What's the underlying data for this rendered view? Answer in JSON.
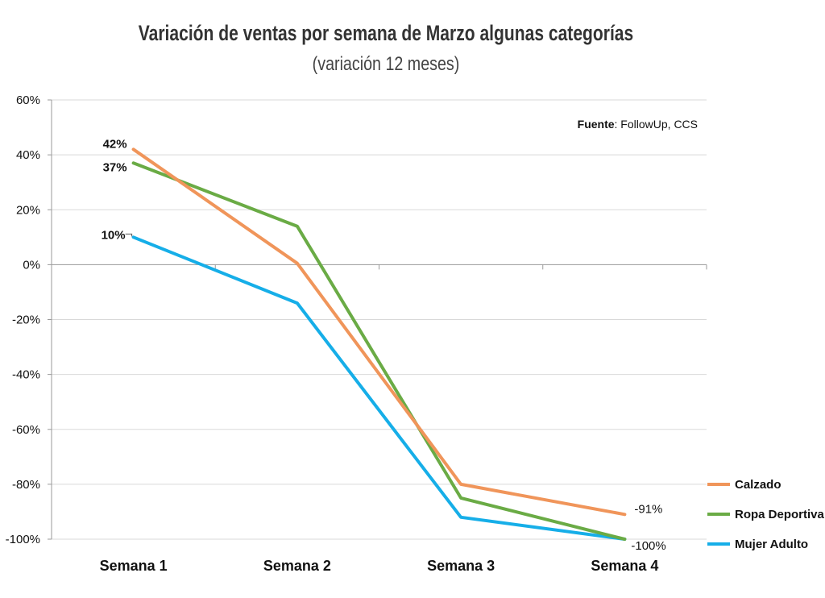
{
  "chart_data": {
    "type": "line",
    "title": "Variación de ventas por semana de Marzo algunas categorías",
    "subtitle": "(variación 12 meses)",
    "source_label": "Fuente",
    "source_text": ": FollowUp, CCS",
    "categories": [
      "Semana 1",
      "Semana 2",
      "Semana 3",
      "Semana 4"
    ],
    "ylim": [
      -100,
      60
    ],
    "yticks": [
      60,
      40,
      20,
      0,
      -20,
      -40,
      -60,
      -80,
      -100
    ],
    "ytick_labels": [
      "60%",
      "40%",
      "20%",
      "0%",
      "-20%",
      "-40%",
      "-60%",
      "-80%",
      "-100%"
    ],
    "grid": true,
    "legend_position": "right",
    "series": [
      {
        "name": "Calzado",
        "color": "#F0955A",
        "values": [
          42,
          0.5,
          -80,
          -91
        ]
      },
      {
        "name": "Ropa Deportiva",
        "color": "#6AAB45",
        "values": [
          37,
          14,
          -85,
          -100
        ]
      },
      {
        "name": "Mujer Adulto",
        "color": "#16AEE8",
        "values": [
          10,
          -14,
          -92,
          -100
        ]
      }
    ],
    "data_labels": [
      {
        "text": "42%",
        "series": 0,
        "point": 0
      },
      {
        "text": "37%",
        "series": 1,
        "point": 0
      },
      {
        "text": "10%",
        "series": 2,
        "point": 0
      },
      {
        "text": "-91%",
        "series": 0,
        "point": 3
      },
      {
        "text": "-100%",
        "series": 1,
        "point": 3
      }
    ]
  }
}
